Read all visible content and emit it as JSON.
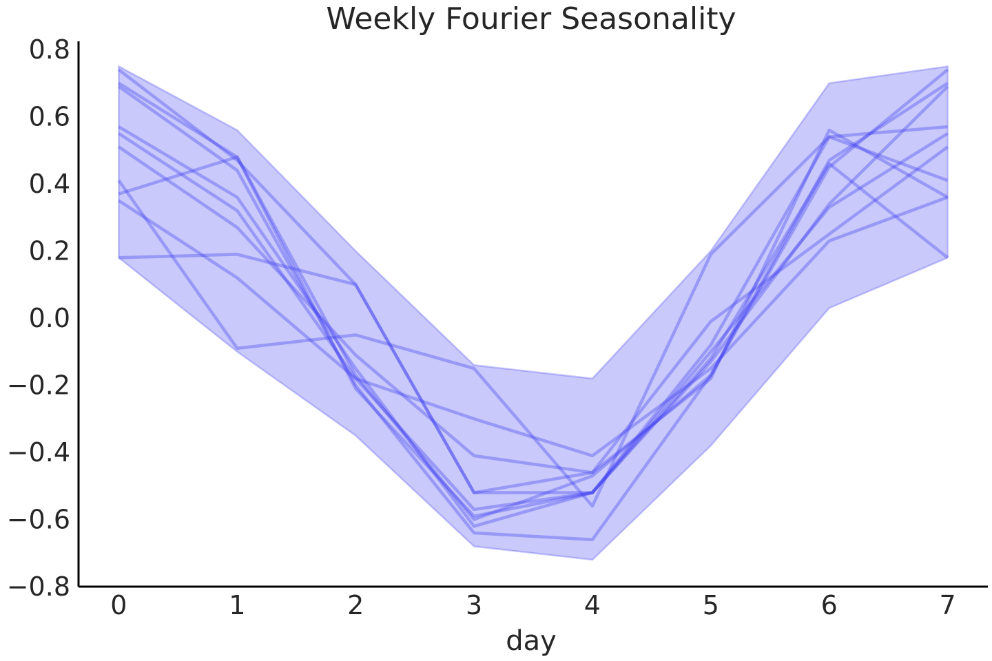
{
  "chart_data": {
    "type": "line",
    "title": "Weekly Fourier Seasonality",
    "xlabel": "day",
    "ylabel": "",
    "x": [
      0,
      1,
      2,
      3,
      4,
      5,
      6,
      7
    ],
    "xlim": [
      -0.34,
      7.34
    ],
    "ylim": [
      -0.8,
      0.8
    ],
    "x_ticks": [
      "0",
      "1",
      "2",
      "3",
      "4",
      "5",
      "6",
      "7"
    ],
    "y_ticks": [
      "−0.8",
      "−0.6",
      "−0.4",
      "−0.2",
      "0.0",
      "0.2",
      "0.4",
      "0.6",
      "0.8"
    ],
    "y_tick_values": [
      -0.8,
      -0.6,
      -0.4,
      -0.2,
      0.0,
      0.2,
      0.4,
      0.6,
      0.8
    ],
    "grid": false,
    "colors": {
      "series": "#3c3cf0",
      "band": "#3c3cf0",
      "axis": "#000000",
      "text": "#262626"
    },
    "band": {
      "upper": [
        0.75,
        0.56,
        0.2,
        -0.14,
        -0.18,
        0.2,
        0.7,
        0.75
      ],
      "lower": [
        0.18,
        -0.1,
        -0.35,
        -0.68,
        -0.72,
        -0.38,
        0.03,
        0.18
      ]
    },
    "series": [
      {
        "values": [
          0.74,
          0.47,
          0.1,
          -0.52,
          -0.46,
          -0.18,
          0.56,
          0.36
        ]
      },
      {
        "values": [
          0.7,
          0.48,
          -0.17,
          -0.6,
          -0.47,
          -0.17,
          0.47,
          0.7
        ]
      },
      {
        "values": [
          0.69,
          0.44,
          -0.2,
          -0.64,
          -0.66,
          -0.17,
          0.45,
          0.74
        ]
      },
      {
        "values": [
          0.57,
          0.36,
          -0.15,
          -0.62,
          -0.52,
          -0.08,
          0.54,
          0.41
        ]
      },
      {
        "values": [
          0.55,
          0.32,
          -0.18,
          -0.57,
          -0.52,
          -0.13,
          0.34,
          0.69
        ]
      },
      {
        "values": [
          0.51,
          0.27,
          -0.11,
          -0.41,
          -0.46,
          -0.01,
          0.25,
          0.51
        ]
      },
      {
        "values": [
          0.41,
          -0.09,
          -0.05,
          -0.15,
          -0.56,
          0.19,
          0.54,
          0.57
        ]
      },
      {
        "values": [
          0.37,
          0.48,
          -0.21,
          -0.59,
          -0.52,
          -0.1,
          0.33,
          0.55
        ]
      },
      {
        "values": [
          0.35,
          0.12,
          -0.18,
          -0.3,
          -0.41,
          -0.15,
          0.23,
          0.36
        ]
      },
      {
        "values": [
          0.18,
          0.19,
          0.1,
          -0.52,
          -0.52,
          -0.12,
          0.46,
          0.18
        ]
      }
    ]
  }
}
